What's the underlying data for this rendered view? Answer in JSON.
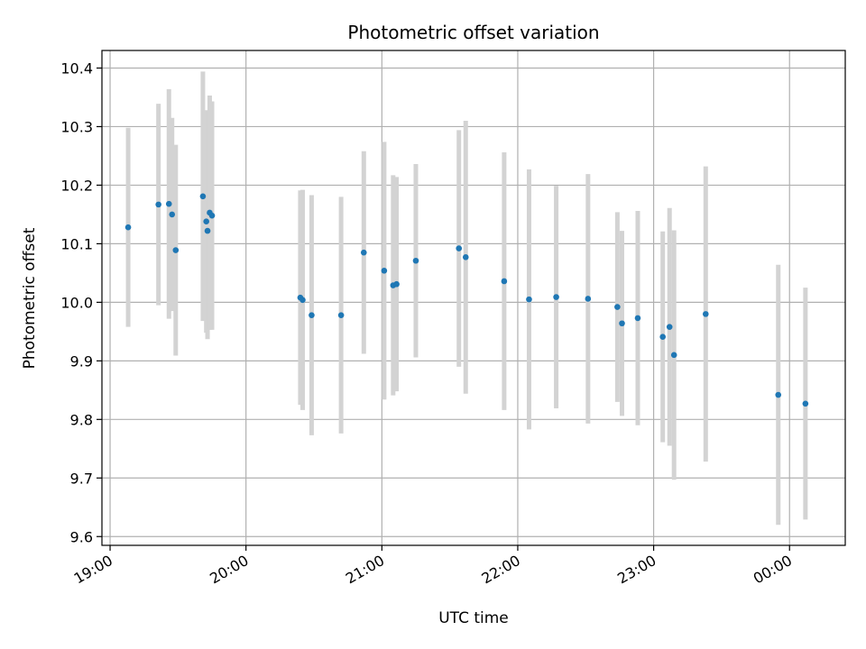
{
  "chart_data": {
    "type": "scatter",
    "title": "Photometric offset variation",
    "xlabel": "UTC time",
    "ylabel": "Photometric offset",
    "x_unit": "hours (UTC, past 24h = next day)",
    "xlim": [
      18.94,
      24.41
    ],
    "ylim": [
      9.585,
      10.43
    ],
    "xticks": [
      {
        "value": 19,
        "label": "19:00"
      },
      {
        "value": 20,
        "label": "20:00"
      },
      {
        "value": 21,
        "label": "21:00"
      },
      {
        "value": 22,
        "label": "22:00"
      },
      {
        "value": 23,
        "label": "23:00"
      },
      {
        "value": 24,
        "label": "00:00"
      }
    ],
    "yticks": [
      {
        "value": 9.6,
        "label": "9.6"
      },
      {
        "value": 9.7,
        "label": "9.7"
      },
      {
        "value": 9.8,
        "label": "9.8"
      },
      {
        "value": 9.9,
        "label": "9.9"
      },
      {
        "value": 10.0,
        "label": "10.0"
      },
      {
        "value": 10.1,
        "label": "10.1"
      },
      {
        "value": 10.2,
        "label": "10.2"
      },
      {
        "value": 10.3,
        "label": "10.3"
      },
      {
        "value": 10.4,
        "label": "10.4"
      }
    ],
    "grid": true,
    "point_color": "#1f77b4",
    "errorbar_color": "#d3d3d3",
    "points": [
      {
        "x": 19.133,
        "y": 10.128,
        "err": 0.17
      },
      {
        "x": 19.356,
        "y": 10.167,
        "err": 0.172
      },
      {
        "x": 19.433,
        "y": 10.168,
        "err": 0.196
      },
      {
        "x": 19.456,
        "y": 10.15,
        "err": 0.165
      },
      {
        "x": 19.483,
        "y": 10.089,
        "err": 0.18
      },
      {
        "x": 19.683,
        "y": 10.181,
        "err": 0.213
      },
      {
        "x": 19.708,
        "y": 10.138,
        "err": 0.19
      },
      {
        "x": 19.717,
        "y": 10.122,
        "err": 0.185
      },
      {
        "x": 19.733,
        "y": 10.153,
        "err": 0.2
      },
      {
        "x": 19.75,
        "y": 10.148,
        "err": 0.195
      },
      {
        "x": 20.4,
        "y": 10.008,
        "err": 0.183
      },
      {
        "x": 20.417,
        "y": 10.004,
        "err": 0.188
      },
      {
        "x": 20.483,
        "y": 9.978,
        "err": 0.205
      },
      {
        "x": 20.7,
        "y": 9.978,
        "err": 0.202
      },
      {
        "x": 20.867,
        "y": 10.085,
        "err": 0.173
      },
      {
        "x": 21.017,
        "y": 10.054,
        "err": 0.22
      },
      {
        "x": 21.083,
        "y": 10.029,
        "err": 0.188
      },
      {
        "x": 21.108,
        "y": 10.031,
        "err": 0.183
      },
      {
        "x": 21.25,
        "y": 10.071,
        "err": 0.165
      },
      {
        "x": 21.567,
        "y": 10.092,
        "err": 0.202
      },
      {
        "x": 21.617,
        "y": 10.077,
        "err": 0.233
      },
      {
        "x": 21.9,
        "y": 10.036,
        "err": 0.22
      },
      {
        "x": 22.083,
        "y": 10.005,
        "err": 0.222
      },
      {
        "x": 22.283,
        "y": 10.009,
        "err": 0.19
      },
      {
        "x": 22.517,
        "y": 10.006,
        "err": 0.213
      },
      {
        "x": 22.733,
        "y": 9.992,
        "err": 0.162
      },
      {
        "x": 22.767,
        "y": 9.964,
        "err": 0.158
      },
      {
        "x": 22.883,
        "y": 9.973,
        "err": 0.183
      },
      {
        "x": 23.067,
        "y": 9.941,
        "err": 0.18
      },
      {
        "x": 23.117,
        "y": 9.958,
        "err": 0.203
      },
      {
        "x": 23.15,
        "y": 9.91,
        "err": 0.213
      },
      {
        "x": 23.383,
        "y": 9.98,
        "err": 0.252
      },
      {
        "x": 23.917,
        "y": 9.842,
        "err": 0.222
      },
      {
        "x": 24.117,
        "y": 9.827,
        "err": 0.198
      }
    ]
  }
}
